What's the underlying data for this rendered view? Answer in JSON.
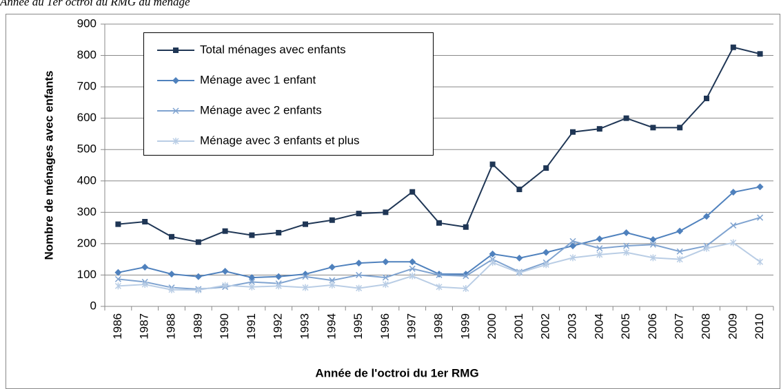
{
  "chart_data": {
    "type": "line",
    "subtitle": "Année du 1er octroi du RMG du ménage",
    "x_label": "Année de l'octroi du 1er RMG",
    "y_label": "Nombre de ménages avec enfants",
    "categories": [
      "1986",
      "1987",
      "1988",
      "1989",
      "1990",
      "1991",
      "1992",
      "1993",
      "1994",
      "1995",
      "1996",
      "1997",
      "1998",
      "1999",
      "2000",
      "2001",
      "2002",
      "2003",
      "2004",
      "2005",
      "2006",
      "2007",
      "2008",
      "2009",
      "2010"
    ],
    "series": [
      {
        "name": "Total ménages avec enfants",
        "color": "#1f3655",
        "marker": "square",
        "values": [
          262,
          270,
          222,
          205,
          240,
          227,
          235,
          262,
          275,
          296,
          300,
          365,
          266,
          253,
          453,
          373,
          441,
          556,
          566,
          600,
          570,
          570,
          663,
          826,
          805
        ]
      },
      {
        "name": "Ménage avec 1 enfant",
        "color": "#4f81bd",
        "marker": "diamond",
        "values": [
          108,
          125,
          103,
          95,
          112,
          92,
          95,
          103,
          125,
          138,
          142,
          142,
          103,
          103,
          167,
          154,
          172,
          193,
          215,
          235,
          213,
          240,
          287,
          364,
          381
        ]
      },
      {
        "name": "Ménage avec 2 enfants",
        "color": "#7fa3d0",
        "marker": "x",
        "values": [
          87,
          78,
          60,
          55,
          62,
          78,
          73,
          95,
          83,
          100,
          92,
          120,
          100,
          97,
          150,
          110,
          140,
          208,
          185,
          193,
          197,
          175,
          193,
          258,
          283
        ]
      },
      {
        "name": "Ménage avec 3 enfants et plus",
        "color": "#b9cde5",
        "marker": "star",
        "values": [
          65,
          70,
          53,
          52,
          67,
          62,
          65,
          60,
          68,
          58,
          70,
          97,
          62,
          57,
          140,
          107,
          133,
          155,
          165,
          172,
          155,
          150,
          185,
          203,
          142
        ]
      }
    ],
    "ylim": [
      0,
      900
    ],
    "yticks": [
      0,
      100,
      200,
      300,
      400,
      500,
      600,
      700,
      800,
      900
    ],
    "grid": true
  }
}
